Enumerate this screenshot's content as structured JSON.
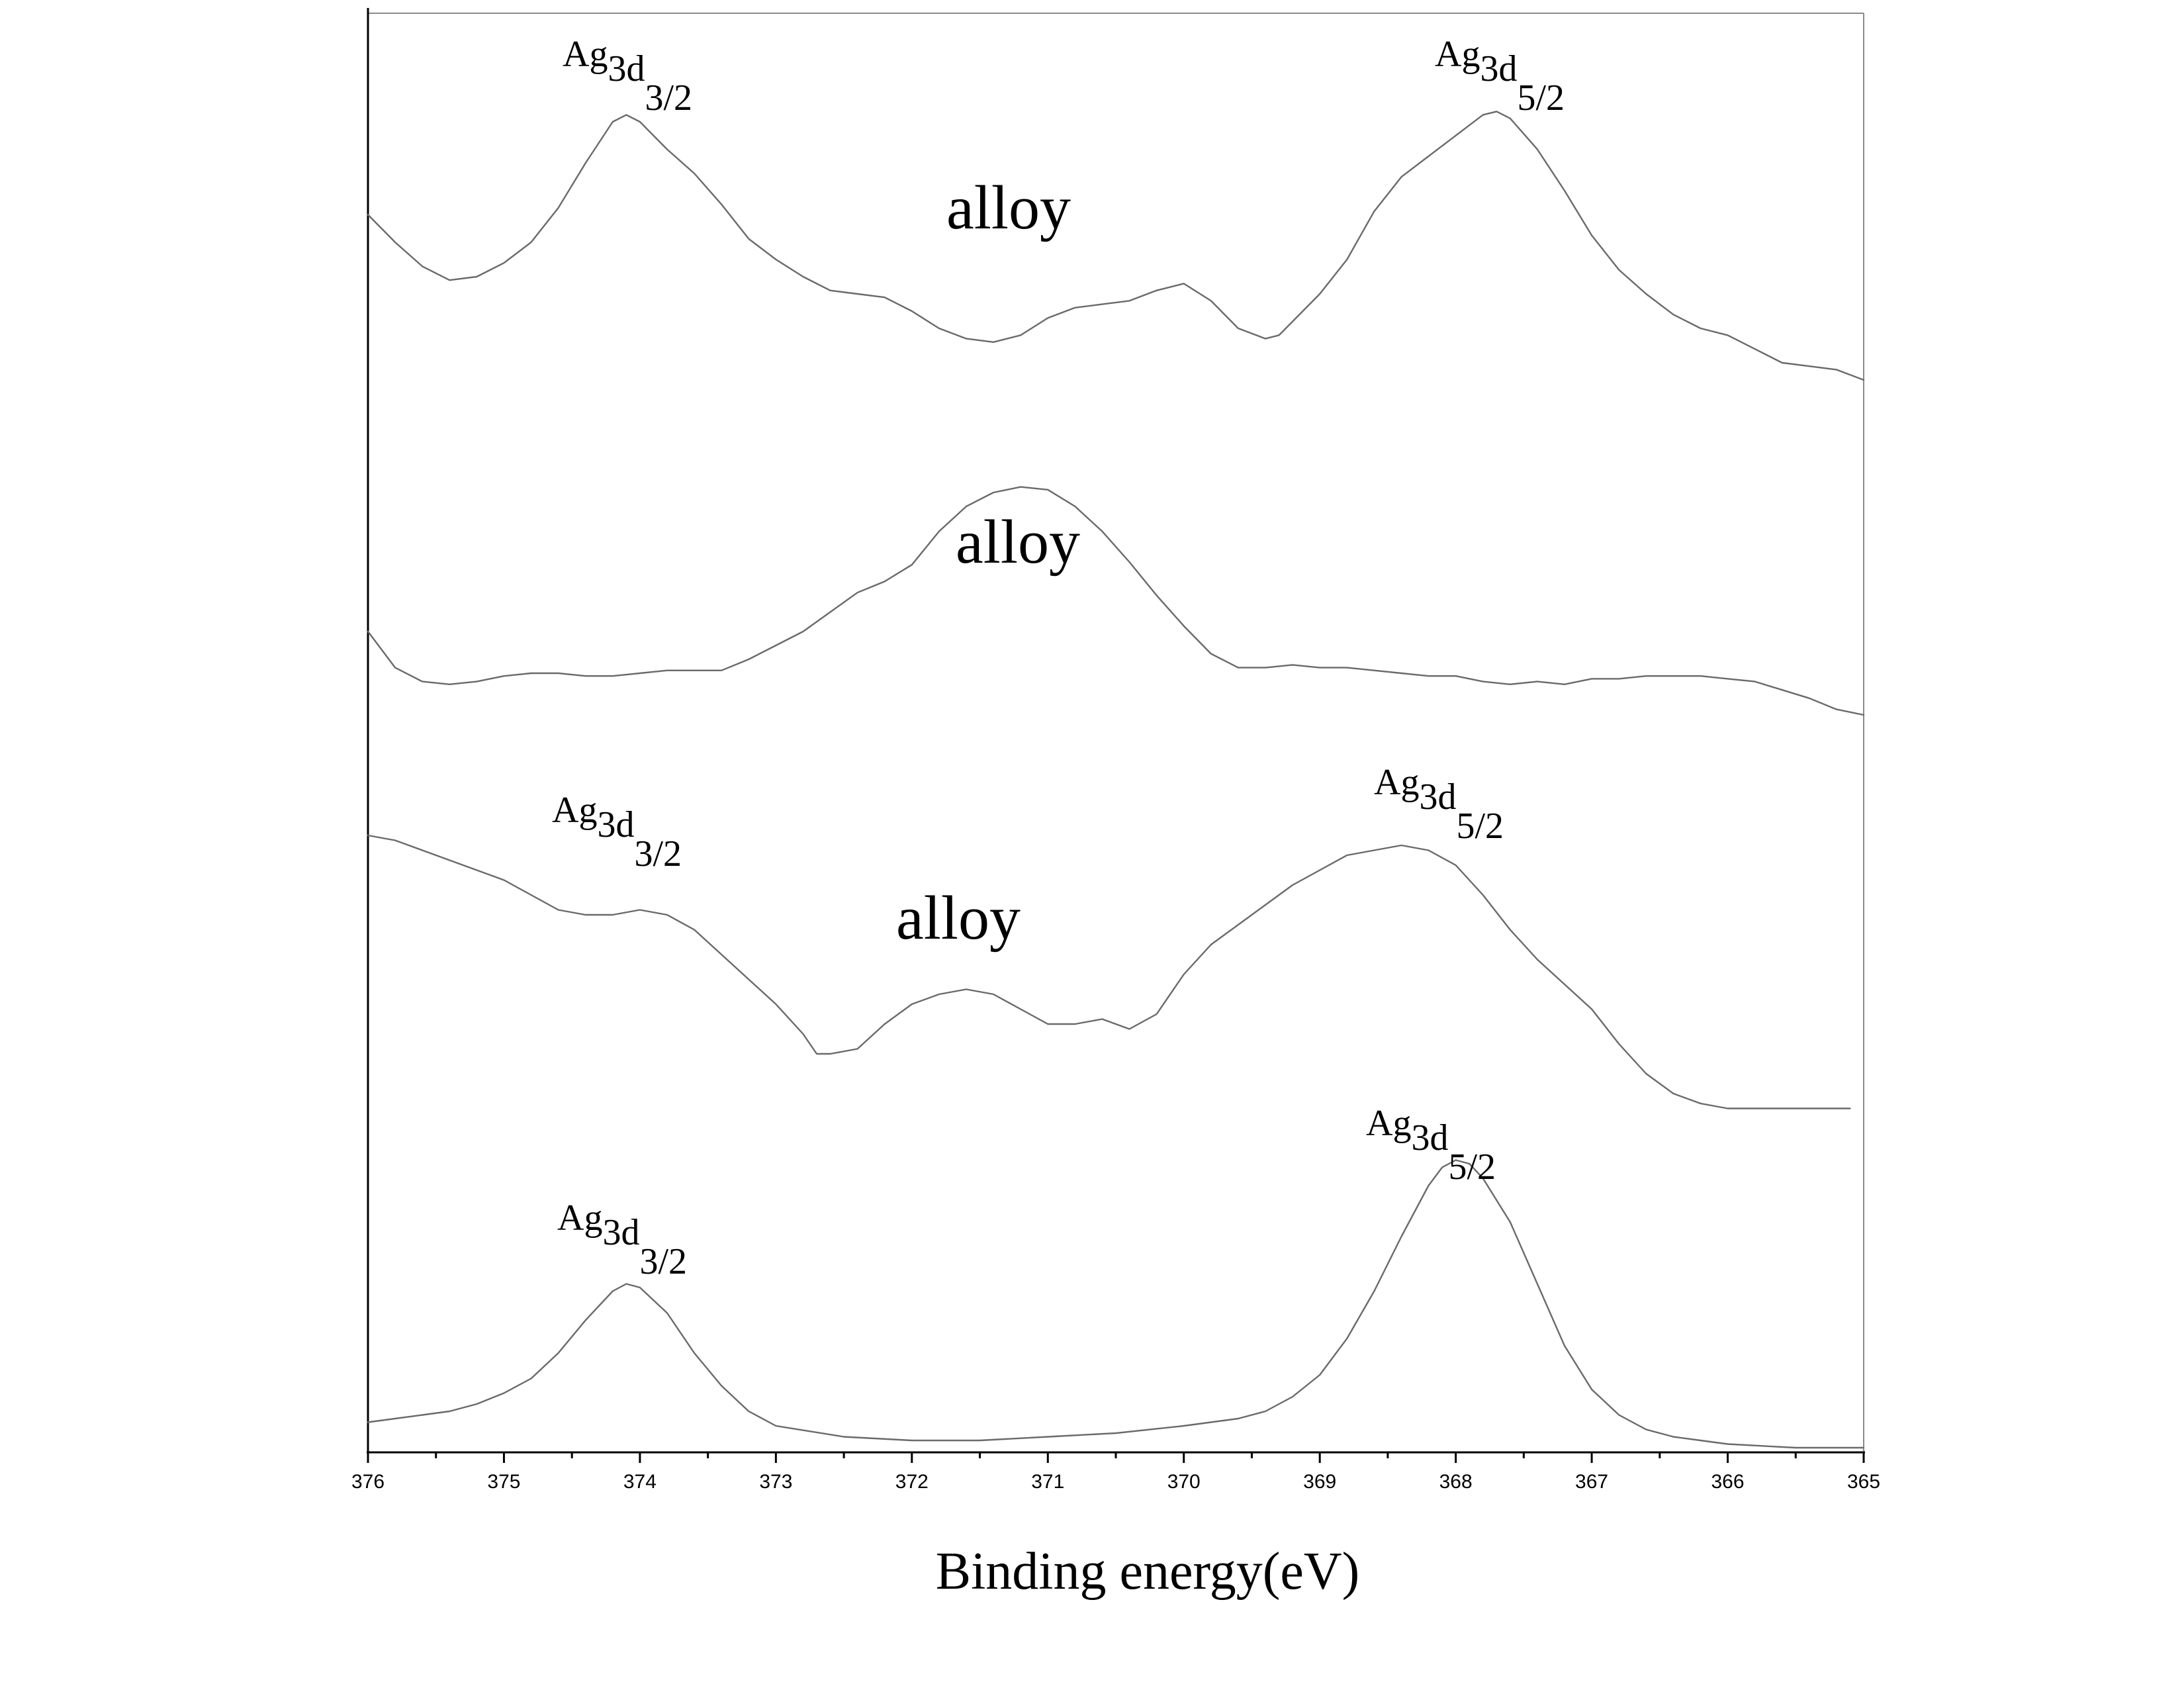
{
  "chart_data": {
    "type": "line",
    "title": "",
    "xlabel": "Binding energy(eV)",
    "ylabel": "",
    "xlim": [
      376,
      365
    ],
    "x_reversed": true,
    "y_axis_labels_shown": false,
    "grid": false,
    "x_ticks": [
      "376",
      "375",
      "374",
      "373",
      "372",
      "371",
      "370",
      "369",
      "368",
      "367",
      "366",
      "365"
    ],
    "series": [
      {
        "x": [
          376,
          375.8,
          375.6,
          375.4,
          375.2,
          375.0,
          374.8,
          374.6,
          374.4,
          374.2,
          374.1,
          374.0,
          373.8,
          373.6,
          373.4,
          373.2,
          373.0,
          372.8,
          372.6,
          372.4,
          372.2,
          372.0,
          371.8,
          371.6,
          371.4,
          371.2,
          371.0,
          370.8,
          370.6,
          370.4,
          370.2,
          370.0,
          369.8,
          369.6,
          369.4,
          369.3,
          369.2,
          369.0,
          368.8,
          368.6,
          368.4,
          368.2,
          368.0,
          367.8,
          367.7,
          367.6,
          367.4,
          367.2,
          367.0,
          366.8,
          366.6,
          366.4,
          366.2,
          366.0,
          365.8,
          365.6,
          365.4,
          365.2,
          365.0
        ],
        "y": [
          0.53,
          0.45,
          0.38,
          0.34,
          0.35,
          0.39,
          0.45,
          0.55,
          0.68,
          0.8,
          0.82,
          0.8,
          0.72,
          0.65,
          0.56,
          0.46,
          0.4,
          0.35,
          0.31,
          0.3,
          0.29,
          0.25,
          0.2,
          0.17,
          0.16,
          0.18,
          0.23,
          0.26,
          0.27,
          0.28,
          0.31,
          0.33,
          0.28,
          0.2,
          0.17,
          0.18,
          0.22,
          0.3,
          0.4,
          0.54,
          0.64,
          0.7,
          0.76,
          0.82,
          0.83,
          0.81,
          0.72,
          0.6,
          0.47,
          0.37,
          0.3,
          0.24,
          0.2,
          0.18,
          0.14,
          0.1,
          0.09,
          0.08,
          0.05
        ]
      },
      {
        "x": [
          376,
          375.8,
          375.6,
          375.4,
          375.2,
          375.0,
          374.8,
          374.6,
          374.4,
          374.2,
          374.0,
          373.8,
          373.6,
          373.4,
          373.2,
          373.0,
          372.8,
          372.6,
          372.4,
          372.2,
          372.0,
          371.8,
          371.6,
          371.4,
          371.2,
          371.0,
          370.8,
          370.6,
          370.4,
          370.2,
          370.0,
          369.8,
          369.6,
          369.4,
          369.2,
          369.0,
          368.8,
          368.6,
          368.4,
          368.2,
          368.0,
          367.8,
          367.6,
          367.4,
          367.2,
          367.0,
          366.8,
          366.6,
          366.4,
          366.2,
          366.0,
          365.8,
          365.6,
          365.4,
          365.2,
          365.0
        ],
        "y": [
          0.3,
          0.17,
          0.12,
          0.11,
          0.12,
          0.14,
          0.15,
          0.15,
          0.14,
          0.14,
          0.15,
          0.16,
          0.16,
          0.16,
          0.2,
          0.25,
          0.3,
          0.37,
          0.44,
          0.48,
          0.54,
          0.66,
          0.75,
          0.8,
          0.82,
          0.81,
          0.75,
          0.66,
          0.55,
          0.43,
          0.32,
          0.22,
          0.17,
          0.17,
          0.18,
          0.17,
          0.17,
          0.16,
          0.15,
          0.14,
          0.14,
          0.12,
          0.11,
          0.12,
          0.11,
          0.13,
          0.13,
          0.14,
          0.14,
          0.14,
          0.13,
          0.12,
          0.09,
          0.06,
          0.02,
          0.0
        ]
      },
      {
        "x": [
          376,
          375.8,
          375.6,
          375.4,
          375.2,
          375.0,
          374.8,
          374.6,
          374.4,
          374.2,
          374.0,
          373.8,
          373.6,
          373.4,
          373.2,
          373.0,
          372.8,
          372.7,
          372.6,
          372.4,
          372.2,
          372.0,
          371.8,
          371.6,
          371.4,
          371.2,
          371.0,
          370.8,
          370.6,
          370.4,
          370.2,
          370.0,
          369.8,
          369.6,
          369.4,
          369.2,
          369.0,
          368.8,
          368.6,
          368.4,
          368.2,
          368.0,
          367.8,
          367.6,
          367.4,
          367.2,
          367.0,
          366.8,
          366.6,
          366.4,
          366.2,
          366.0,
          365.8,
          365.6,
          365.4,
          365.2,
          365.1
        ],
        "y": [
          0.6,
          0.59,
          0.57,
          0.55,
          0.53,
          0.51,
          0.48,
          0.45,
          0.44,
          0.44,
          0.45,
          0.44,
          0.41,
          0.36,
          0.31,
          0.26,
          0.2,
          0.16,
          0.16,
          0.17,
          0.22,
          0.26,
          0.28,
          0.29,
          0.28,
          0.25,
          0.22,
          0.22,
          0.23,
          0.21,
          0.24,
          0.32,
          0.38,
          0.42,
          0.46,
          0.5,
          0.53,
          0.56,
          0.57,
          0.58,
          0.57,
          0.54,
          0.48,
          0.41,
          0.35,
          0.3,
          0.25,
          0.18,
          0.12,
          0.08,
          0.06,
          0.05,
          0.05,
          0.05,
          0.05,
          0.05,
          0.05
        ]
      },
      {
        "x": [
          376,
          375.8,
          375.6,
          375.4,
          375.2,
          375.0,
          374.8,
          374.6,
          374.4,
          374.2,
          374.1,
          374.0,
          373.8,
          373.6,
          373.4,
          373.2,
          373.0,
          372.5,
          372.0,
          371.5,
          371.0,
          370.5,
          370.0,
          369.6,
          369.4,
          369.2,
          369.0,
          368.8,
          368.6,
          368.4,
          368.2,
          368.1,
          368.0,
          367.9,
          367.8,
          367.6,
          367.4,
          367.2,
          367.0,
          366.8,
          366.6,
          366.4,
          366.2,
          366.0,
          365.5,
          365.0
        ],
        "y": [
          0.07,
          0.08,
          0.09,
          0.1,
          0.12,
          0.15,
          0.19,
          0.26,
          0.35,
          0.43,
          0.45,
          0.44,
          0.37,
          0.26,
          0.17,
          0.1,
          0.06,
          0.03,
          0.02,
          0.02,
          0.03,
          0.04,
          0.06,
          0.08,
          0.1,
          0.14,
          0.2,
          0.3,
          0.43,
          0.58,
          0.72,
          0.77,
          0.79,
          0.78,
          0.74,
          0.62,
          0.45,
          0.28,
          0.16,
          0.09,
          0.05,
          0.03,
          0.02,
          0.01,
          0.0,
          0.0
        ]
      }
    ],
    "text_labels": {
      "alloy": "alloy",
      "peak_base": "Ag",
      "peak_sub": "3d",
      "frac_32": "3/2",
      "frac_52": "5/2"
    }
  }
}
